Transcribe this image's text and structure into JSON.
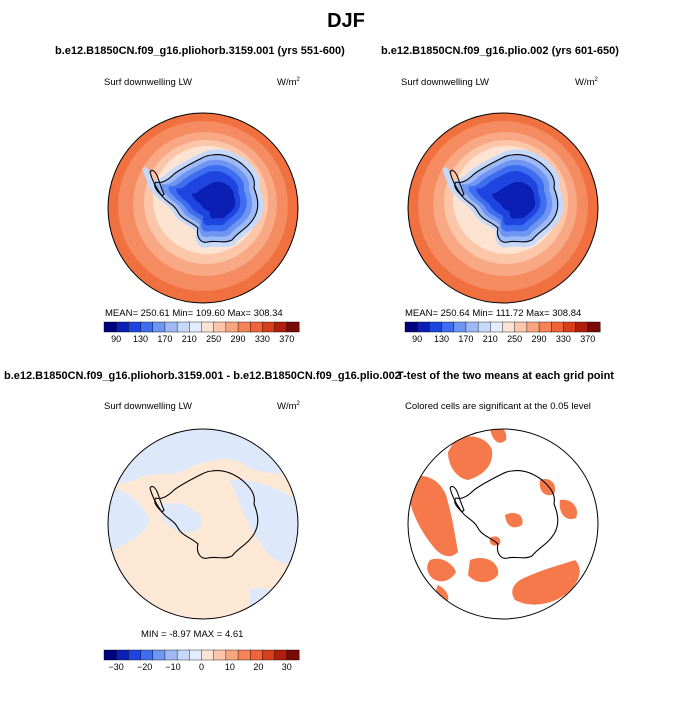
{
  "figure": {
    "title": "DJF"
  },
  "panels": [
    {
      "title": "b.e12.B1850CN.f09_g16.pliohorb.3159.001 (yrs 551-600)",
      "subtitle": "Surf downwelling LW",
      "units_base": "W/m",
      "units_exp": "2",
      "stats": "MEAN= 250.61   Min= 109.60   Max= 308.34"
    },
    {
      "title": "b.e12.B1850CN.f09_g16.plio.002 (yrs 601-650)",
      "subtitle": "Surf downwelling LW",
      "units_base": "W/m",
      "units_exp": "2",
      "stats": "MEAN= 250.64   Min= 111.72   Max= 308.84"
    },
    {
      "title": "b.e12.B1850CN.f09_g16.pliohorb.3159.001 - b.e12.B1850CN.f09_g16.plio.002",
      "subtitle": "Surf downwelling LW",
      "units_base": "W/m",
      "units_exp": "2",
      "stats": "MIN =   -8.97  MAX =     4.61"
    },
    {
      "title": "T-test of the two means at each grid point",
      "subtitle": "Colored cells are significant at the 0.05 level"
    }
  ],
  "chart_data": [
    {
      "type": "heatmap",
      "projection": "south-polar-stereographic",
      "title": "b.e12.B1850CN.f09_g16.pliohorb.3159.001 (yrs 551-600)",
      "variable": "Surf downwelling LW",
      "units": "W/m^2",
      "mean": 250.61,
      "min": 109.6,
      "max": 308.34,
      "colorbar": {
        "levels": [
          90,
          130,
          170,
          210,
          250,
          290,
          330,
          370
        ],
        "tick_labels": [
          "90",
          "130",
          "170",
          "210",
          "250",
          "290",
          "330",
          "370"
        ]
      }
    },
    {
      "type": "heatmap",
      "projection": "south-polar-stereographic",
      "title": "b.e12.B1850CN.f09_g16.plio.002 (yrs 601-650)",
      "variable": "Surf downwelling LW",
      "units": "W/m^2",
      "mean": 250.64,
      "min": 111.72,
      "max": 308.84,
      "colorbar": {
        "levels": [
          90,
          130,
          170,
          210,
          250,
          290,
          330,
          370
        ],
        "tick_labels": [
          "90",
          "130",
          "170",
          "210",
          "250",
          "290",
          "330",
          "370"
        ]
      }
    },
    {
      "type": "heatmap",
      "projection": "south-polar-stereographic",
      "title": "b.e12.B1850CN.f09_g16.pliohorb.3159.001 - b.e12.B1850CN.f09_g16.plio.002",
      "variable": "Surf downwelling LW",
      "units": "W/m^2",
      "min": -8.97,
      "max": 4.61,
      "colorbar": {
        "levels": [
          -30,
          -20,
          -10,
          0,
          10,
          20,
          30
        ],
        "tick_labels": [
          "−30",
          "−20",
          "−10",
          "0",
          "10",
          "20",
          "30"
        ]
      }
    },
    {
      "type": "heatmap",
      "projection": "south-polar-stereographic",
      "title": "T-test of the two means at each grid point",
      "note": "Colored cells are significant at the 0.05 level",
      "significance_level": 0.05
    }
  ],
  "colors": {
    "palette": [
      "#00007a",
      "#0b1fb5",
      "#1f45e0",
      "#3e6df0",
      "#6f95f2",
      "#9dbaf7",
      "#c6d9fb",
      "#e3edfd",
      "#fde3d2",
      "#fcc6a8",
      "#f9a57f",
      "#f68358",
      "#ef6438",
      "#d93e1c",
      "#b01e0c",
      "#7a0a06"
    ],
    "coast": "#000000"
  }
}
